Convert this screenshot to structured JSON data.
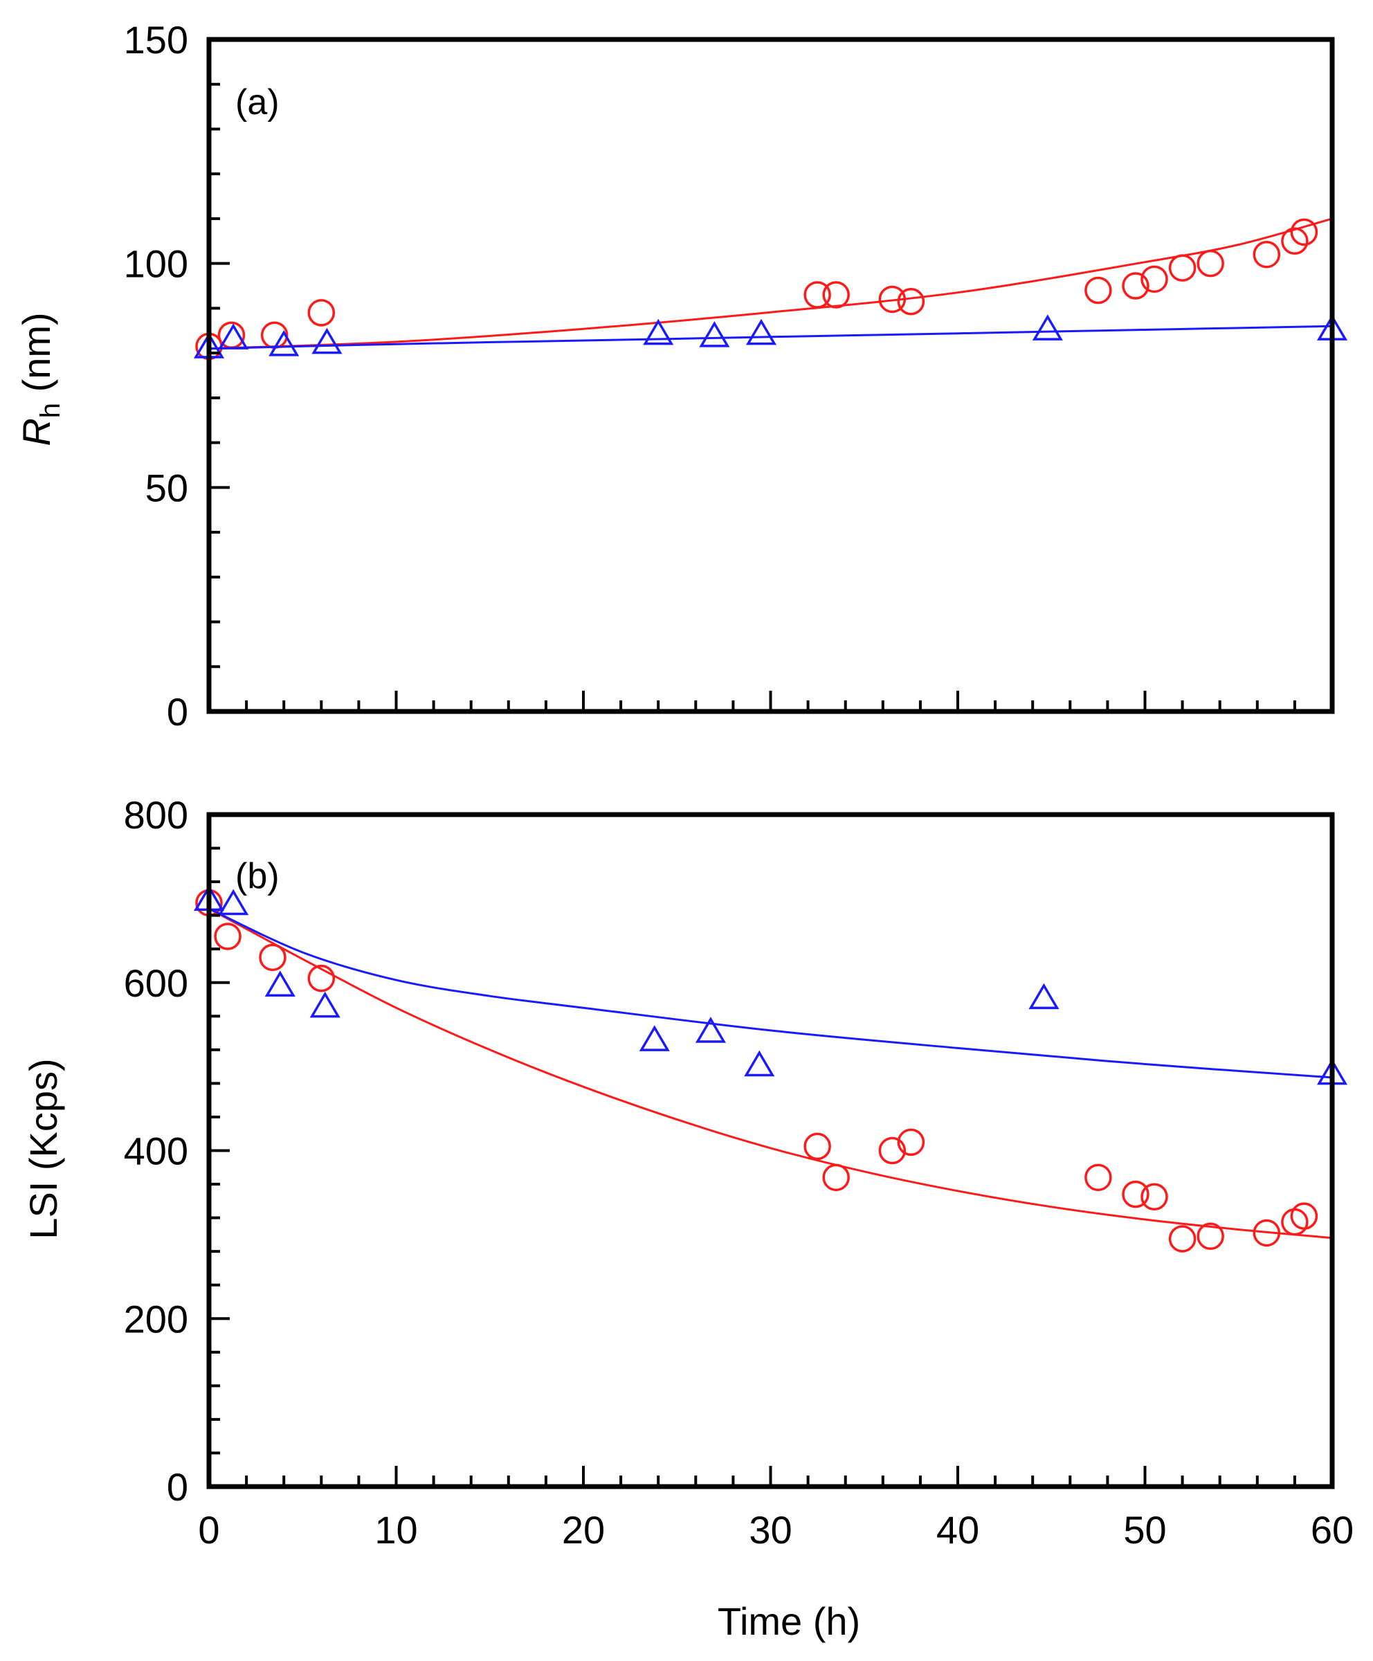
{
  "chart_data": [
    {
      "type": "scatter",
      "panel_label": "(a)",
      "xlabel": "Time (h)",
      "ylabel_main": "R",
      "ylabel_sub": "h",
      "ylabel_unit": " (nm)",
      "xlim": [
        0,
        60
      ],
      "ylim": [
        0,
        150
      ],
      "x_ticks": [
        0,
        10,
        20,
        30,
        40,
        50,
        60
      ],
      "y_ticks": [
        0,
        50,
        100,
        150
      ],
      "y_tick_labels": [
        "0",
        "50",
        "100",
        "150"
      ],
      "series": [
        {
          "name": "circles",
          "marker": "circle",
          "color": "#ff1a1a",
          "points": [
            [
              0,
              81.5
            ],
            [
              1.2,
              84
            ],
            [
              3.5,
              84
            ],
            [
              6,
              89
            ],
            [
              32.5,
              93
            ],
            [
              33.5,
              93
            ],
            [
              36.5,
              92
            ],
            [
              37.5,
              91.5
            ],
            [
              47.5,
              94
            ],
            [
              49.5,
              95
            ],
            [
              50.5,
              96.5
            ],
            [
              52,
              99
            ],
            [
              53.5,
              100
            ],
            [
              56.5,
              102
            ],
            [
              58,
              105
            ],
            [
              58.5,
              107
            ]
          ],
          "fit": [
            [
              0,
              81
            ],
            [
              10,
              82.5
            ],
            [
              20,
              85.4
            ],
            [
              30,
              89.1
            ],
            [
              40,
              93.5
            ],
            [
              50,
              100.3
            ],
            [
              55,
              104.2
            ],
            [
              60,
              110
            ]
          ]
        },
        {
          "name": "triangles",
          "marker": "triangle",
          "color": "#1a1aff",
          "points": [
            [
              0,
              81
            ],
            [
              1.3,
              83
            ],
            [
              4,
              81.5
            ],
            [
              6.3,
              82
            ],
            [
              24,
              84
            ],
            [
              27,
              83.5
            ],
            [
              29.5,
              84
            ],
            [
              44.8,
              85
            ],
            [
              60,
              85
            ]
          ],
          "fit": [
            [
              0,
              81
            ],
            [
              10,
              82
            ],
            [
              20,
              82.8
            ],
            [
              30,
              83.6
            ],
            [
              40,
              84.4
            ],
            [
              50,
              85.2
            ],
            [
              60,
              86
            ]
          ]
        }
      ]
    },
    {
      "type": "scatter",
      "panel_label": "(b)",
      "xlabel": "Time (h)",
      "ylabel": "LSI (Kcps)",
      "xlim": [
        0,
        60
      ],
      "ylim": [
        0,
        800
      ],
      "x_ticks": [
        0,
        10,
        20,
        30,
        40,
        50,
        60
      ],
      "x_tick_labels": [
        "0",
        "10",
        "20",
        "30",
        "40",
        "50",
        "60"
      ],
      "y_ticks": [
        0,
        200,
        400,
        600,
        800
      ],
      "y_tick_labels": [
        "0",
        "200",
        "400",
        "600",
        "800"
      ],
      "series": [
        {
          "name": "circles",
          "marker": "circle",
          "color": "#ff1a1a",
          "points": [
            [
              0,
              695
            ],
            [
              1,
              655
            ],
            [
              3.4,
              630
            ],
            [
              6,
              605
            ],
            [
              32.5,
              405
            ],
            [
              33.5,
              368
            ],
            [
              36.5,
              400
            ],
            [
              37.5,
              410
            ],
            [
              47.5,
              368
            ],
            [
              49.5,
              348
            ],
            [
              50.5,
              345
            ],
            [
              52,
              295
            ],
            [
              53.5,
              298
            ],
            [
              56.5,
              302
            ],
            [
              58,
              315
            ],
            [
              58.5,
              322
            ]
          ],
          "fit": [
            [
              0,
              688
            ],
            [
              5,
              628
            ],
            [
              10,
              570
            ],
            [
              15,
              520
            ],
            [
              20,
              476
            ],
            [
              25,
              437
            ],
            [
              30,
              403
            ],
            [
              35,
              375
            ],
            [
              40,
              352
            ],
            [
              45,
              333
            ],
            [
              50,
              318
            ],
            [
              55,
              306
            ],
            [
              60,
              296
            ]
          ]
        },
        {
          "name": "triangles",
          "marker": "triangle",
          "color": "#1a1aff",
          "points": [
            [
              0,
              697
            ],
            [
              1.3,
              692
            ],
            [
              3.8,
              595
            ],
            [
              6.2,
              570
            ],
            [
              23.8,
              530
            ],
            [
              26.8,
              540
            ],
            [
              29.4,
              500
            ],
            [
              44.6,
              580
            ],
            [
              60,
              490
            ]
          ],
          "fit": [
            [
              0,
              688
            ],
            [
              5,
              636
            ],
            [
              10,
              603
            ],
            [
              15,
              584
            ],
            [
              20,
              570
            ],
            [
              30,
              543
            ],
            [
              40,
              522
            ],
            [
              50,
              503
            ],
            [
              60,
              487
            ]
          ]
        }
      ]
    }
  ]
}
